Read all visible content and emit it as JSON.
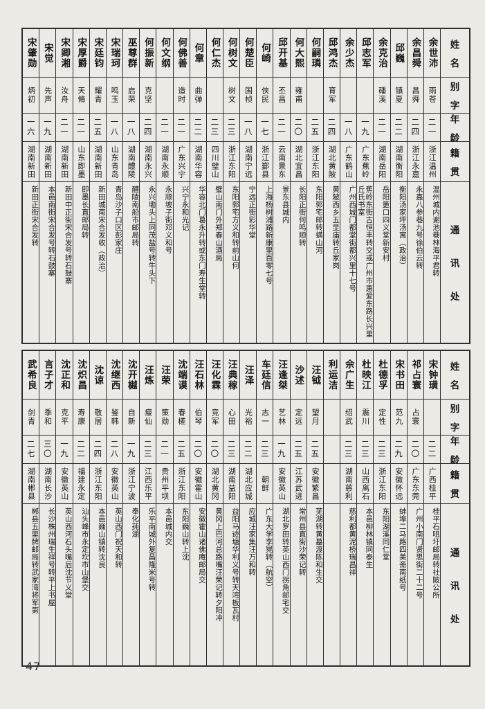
{
  "page": {
    "number": "47"
  },
  "headers": {
    "name": "姓名",
    "zi": "别字",
    "age": "年龄",
    "native": "籍贯",
    "address": "通讯处"
  },
  "tables": [
    {
      "entries": [
        {
          "name": "余世沛",
          "zi": "雨苍",
          "age": "二一",
          "native": "浙江温州",
          "address": "温州城内谢池巷林海平君转"
        },
        {
          "name": "余昌舜",
          "zi": "昌舜",
          "age": "二四",
          "native": "浙江永嘉",
          "address": "永嘉八参巷九号徐伯云转"
        },
        {
          "name": "邱巍",
          "zi": "镇夏",
          "age": "二二",
          "native": "湖南衡阳",
          "address": "衡阳汤家坪汤寓（政治）"
        },
        {
          "name": "余克治",
          "zi": "磻溪",
          "age": "二一",
          "native": "湖南岳阳",
          "address": "岳阳筻口四义堂新安村"
        },
        {
          "name": "邱志军",
          "zi": "",
          "age": "一九",
          "native": "广东蕉岭",
          "address": "蕉岭东街古恒丰转交或广州市惠爱东路长兴里丘氏书室"
        },
        {
          "name": "余少杰",
          "zi": "",
          "age": "一八",
          "native": "广东鹤山",
          "address": "广州西城门都堂街都兴里十七号"
        },
        {
          "name": "邱鸿杰",
          "zi": "育军",
          "age": "二四",
          "native": "湖北黄陂",
          "address": "黄陂西乡五显庙转丘家岗"
        },
        {
          "name": "何嗣璘",
          "zi": "",
          "age": "二五",
          "native": "浙江东阳",
          "address": "东阳郭宅邮转螨山河"
        },
        {
          "name": "何大熙",
          "zi": "雍甫",
          "age": "二〇",
          "native": "湖北宜昌",
          "address": "长阳正街何鸣顺转"
        },
        {
          "name": "邱开基",
          "zi": "丕昌",
          "age": "二一",
          "native": "云南景东",
          "address": "景东县城内"
        },
        {
          "name": "何崎",
          "zi": "侠民",
          "age": "一七",
          "native": "浙江鄞县",
          "address": "上海杨树浦路新康里百零七号"
        },
        {
          "name": "何楚臣",
          "zi": "国桢",
          "age": "一八",
          "native": "湖南宁远",
          "address": "宁远正街彩华堂"
        },
        {
          "name": "何树文",
          "zi": "树文",
          "age": "二三",
          "native": "浙江东阳",
          "address": "东阳郭宅方义和转前山何"
        },
        {
          "name": "何仁杰",
          "zi": "",
          "age": "二三",
          "native": "四川璧山",
          "address": "璧山南门外郑春山酒局"
        },
        {
          "name": "何章",
          "zi": "曲弹",
          "age": "二二",
          "native": "湖南华容",
          "address": "华容北门葛永升转或东门寿生堂转"
        },
        {
          "name": "何佛善",
          "zi": "造时",
          "age": "二一",
          "native": "广东兴宁",
          "address": "兴宁永和光记"
        },
        {
          "name": "何文纲",
          "zi": "",
          "age": "二一",
          "native": "湖南永顺",
          "address": "永顺坡子街邓义和号"
        },
        {
          "name": "何振新",
          "zi": "克坚",
          "age": "二四",
          "native": "湖南永兴",
          "address": "永兴墈头上同茂盐号转牛头下"
        },
        {
          "name": "巫尊群",
          "zi": "启荣",
          "age": "一八",
          "native": "湖南醴陵",
          "address": "醴陵南船市邮局转"
        },
        {
          "name": "宋瑞珂",
          "zi": "鸣玉",
          "age": "一八",
          "native": "山东青岛",
          "address": "青岛沙子口区彭家庄"
        },
        {
          "name": "宋廷钧",
          "zi": "耀青",
          "age": "二五",
          "native": "湖南新田",
          "address": "新田城南宋合发收（政治）"
        },
        {
          "name": "宋厚爵",
          "zi": "天脩",
          "age": "二一",
          "native": "山东即墨",
          "address": "即墨长直邮局转"
        },
        {
          "name": "宋卿湘",
          "zi": "汝舟",
          "age": "二一",
          "native": "湖南新田",
          "address": "新田中正街宋合发号转石鼓寨"
        },
        {
          "name": "宋觉",
          "zi": "先声",
          "age": "一九",
          "native": "湖南新田",
          "address": "本邑南街宋合发号转石鼓寨"
        },
        {
          "name": "宋肇勋",
          "zi": "炳初",
          "age": "一六",
          "native": "湖南新田",
          "address": "新田正街宋合发转"
        }
      ]
    },
    {
      "entries": [
        {
          "name": "宋钟璜",
          "zi": "",
          "age": "二二",
          "native": "广西桂平",
          "address": "桂平石咀圩邮局转社陂公所"
        },
        {
          "name": "祁占寰",
          "zi": "占寰",
          "age": "二〇",
          "native": "广东东莞",
          "address": "广州小南门贤思街二十二号"
        },
        {
          "name": "宋书田",
          "zi": "范九",
          "age": "二九",
          "native": "安徽怀远",
          "address": "蚌埠二马路四美斋南纸号"
        },
        {
          "name": "杜德孚",
          "zi": "定性",
          "age": "二三",
          "native": "浙江东阳",
          "address": "东阳湖溪同仁堂"
        },
        {
          "name": "杜映江",
          "zi": "震川",
          "age": "二三",
          "native": "山西离石",
          "address": "本邑柳林镇同泰生"
        },
        {
          "name": "佘广生",
          "zi": "绍武",
          "age": "二三",
          "native": "湖南慈利",
          "address": "慈利都黄泥桥瑞昌祥"
        },
        {
          "name": "利运洁",
          "zi": "",
          "age": "",
          "native": "",
          "address": ""
        },
        {
          "name": "汪钺",
          "zi": "望月",
          "age": "二五",
          "native": "安徽繁昌",
          "address": "芜湖转黄墓渡陈和生交"
        },
        {
          "name": "沙述",
          "zi": "定远",
          "age": "二五",
          "native": "江苏武进",
          "address": "常州县直街沙荣记转"
        },
        {
          "name": "汪逢桀",
          "zi": "艺林",
          "age": "一九",
          "native": "安徽英山",
          "address": "湖北罗田转英山西门拐角邮宅交"
        },
        {
          "name": "车廷信",
          "zi": "志一",
          "age": "二三",
          "native": "朝鲜",
          "address": "广东大学李晃转（航空）"
        },
        {
          "name": "汪泽",
          "zi": "光裕",
          "age": "二二",
          "native": "湖北应城",
          "address": "应城汪家集汪万和转"
        },
        {
          "name": "汪典稼",
          "zi": "心田",
          "age": "二三",
          "native": "湖南益阳",
          "address": "益阳马迹塘华利义号转天湾板瓦村"
        },
        {
          "name": "汪化霖",
          "zi": "竞军",
          "age": "二〇",
          "native": "湖北黄冈",
          "address": "黄冈上巴河总路嘴汪荣记转夕阳冲"
        },
        {
          "name": "汪石林",
          "zi": "伯琴",
          "age": "二〇",
          "native": "安徽霍山",
          "address": "安徽霍山诸佛庵邮局交"
        },
        {
          "name": "沈端谟",
          "zi": "春槎",
          "age": "二五",
          "native": "浙江东阳",
          "address": "东阳巍山转上沈"
        },
        {
          "name": "汪荣",
          "zi": "策勋",
          "age": "二一",
          "native": "贵州平坝",
          "address": "本邑城内交"
        },
        {
          "name": "汪炼",
          "zi": "瘦仙",
          "age": "二三",
          "native": "江西乐平",
          "address": "乐平南城外复昌隆米号转"
        },
        {
          "name": "沈开樾",
          "zi": "自新",
          "age": "一九",
          "native": "浙江宁波",
          "address": "奉化莼湖"
        },
        {
          "name": "沈继西",
          "zi": "鉴韩",
          "age": "二八",
          "native": "安徽英山",
          "address": "英山西门祝天和转"
        },
        {
          "name": "沈谅",
          "zi": "敬居",
          "age": "二四",
          "native": "浙江东阳",
          "address": "本邑巍山镇转沈良"
        },
        {
          "name": "沈炽昌",
          "zi": "寿康",
          "age": "二二",
          "native": "福建永定",
          "address": "汕头峰市永定坎市山堡交"
        },
        {
          "name": "沈正和",
          "zi": "克平",
          "age": "一九",
          "native": "安徽英山",
          "address": "英山西河石头嘴后沈节义堂"
        },
        {
          "name": "言子才",
          "zi": "季和",
          "age": "三〇",
          "native": "湖南长沙",
          "address": "长沙株州瑞生祥号转平上书屋"
        },
        {
          "name": "武希良",
          "zi": "剑青",
          "age": "二七",
          "native": "湖南郴县",
          "address": "郴县五里牌邮局转武家湾将军第"
        }
      ]
    }
  ]
}
